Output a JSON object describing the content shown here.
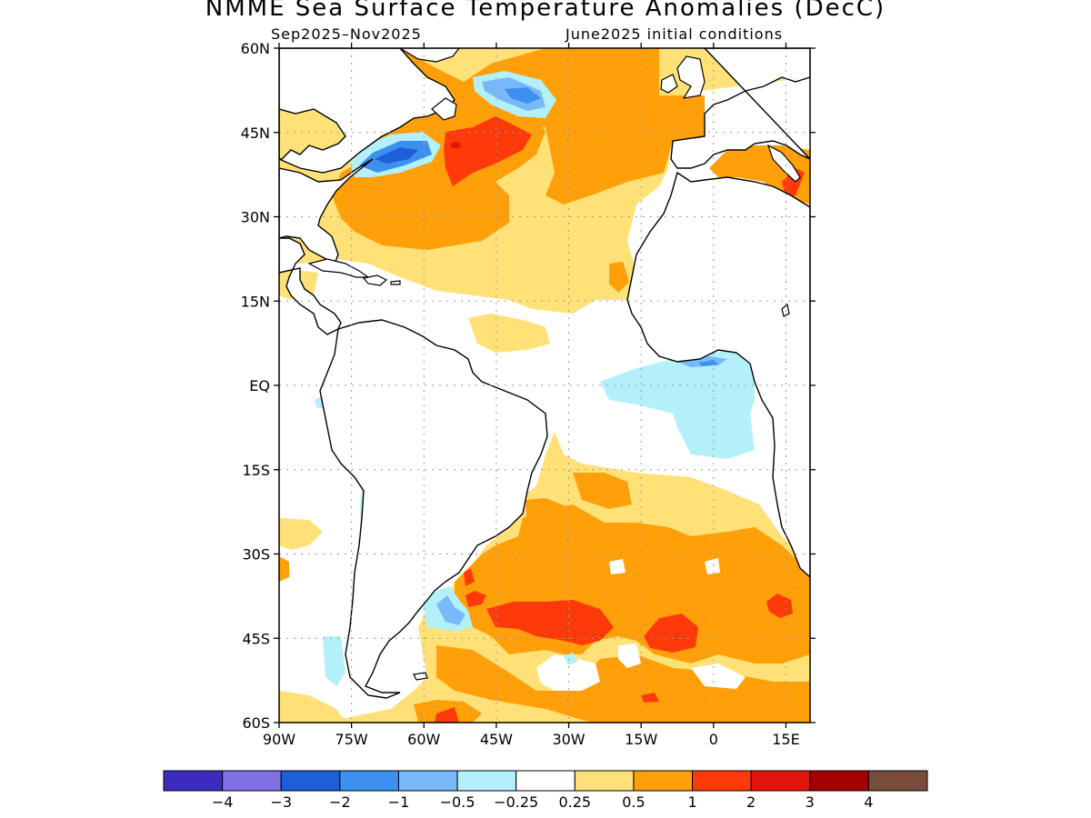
{
  "title": "NMME Sea Surface Temperature Anomalies (DecC)",
  "subtitle_left": "Sep2025–Nov2025",
  "subtitle_right": "June2025 initial conditions",
  "axes": {
    "lat_labels": [
      "60N",
      "45N",
      "30N",
      "15N",
      "EQ",
      "15S",
      "30S",
      "45S",
      "60S"
    ],
    "lon_labels": [
      "90W",
      "75W",
      "60W",
      "45W",
      "30W",
      "15W",
      "0",
      "15E"
    ]
  },
  "colorbar": {
    "colors": [
      "#3b2cbd",
      "#8070e6",
      "#1e5ed6",
      "#3c90f0",
      "#78b9fa",
      "#b4f0fa",
      "#ffffff",
      "#ffe178",
      "#ffa00a",
      "#ff3a0a",
      "#e0140a",
      "#a50000",
      "#784b3c"
    ],
    "labels": [
      "−4",
      "−3",
      "−2",
      "−1",
      "−0.5",
      "−0.25",
      "0.25",
      "0.5",
      "1",
      "2",
      "3",
      "4"
    ]
  },
  "palette": {
    "land": "#ffffff",
    "coast": "#000000",
    "grid": "#999999"
  }
}
